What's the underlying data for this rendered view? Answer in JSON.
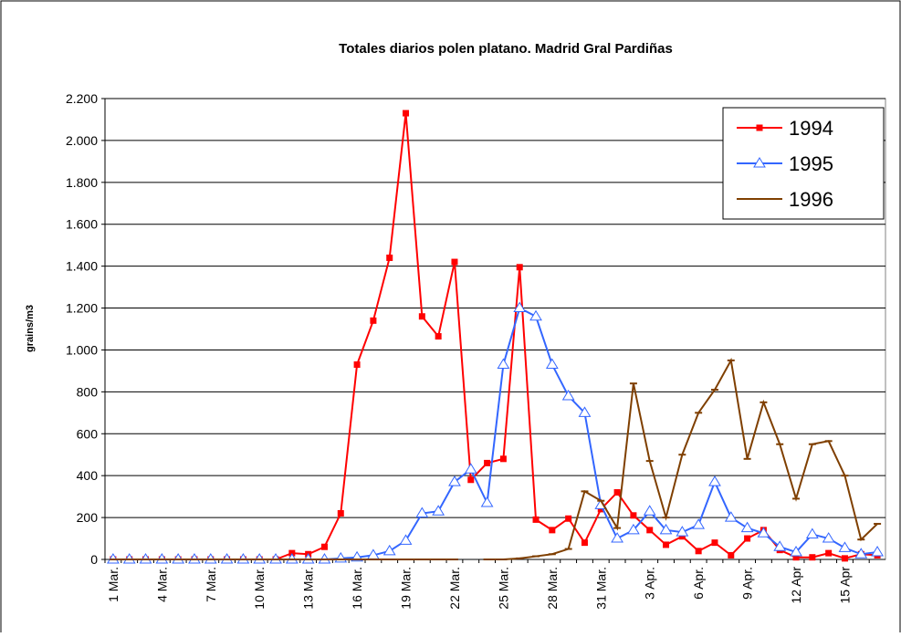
{
  "chart_data": {
    "type": "line",
    "title": "Totales diarios polen platano. Madrid Gral Pardiñas",
    "y_label": "grains/m3",
    "categories": [
      "1 Mar.",
      null,
      null,
      "4 Mar.",
      null,
      null,
      "7 Mar.",
      null,
      null,
      "10 Mar.",
      null,
      null,
      "13 Mar.",
      null,
      null,
      "16 Mar.",
      null,
      null,
      "19 Mar.",
      null,
      null,
      "22 Mar.",
      null,
      null,
      "25 Mar.",
      null,
      null,
      "28 Mar.",
      null,
      null,
      "31 Mar.",
      null,
      null,
      "3  Apr.",
      null,
      null,
      "6  Apr.",
      null,
      null,
      "9  Apr.",
      null,
      null,
      "12 Apr",
      null,
      null,
      "15 Apr",
      null,
      null
    ],
    "series": [
      {
        "name": "1994",
        "color": "#ff0000",
        "marker": "square",
        "values": [
          0,
          0,
          0,
          0,
          0,
          0,
          0,
          0,
          0,
          0,
          0,
          30,
          25,
          60,
          220,
          930,
          1140,
          1440,
          2130,
          1160,
          1065,
          1420,
          380,
          460,
          480,
          1395,
          190,
          140,
          195,
          80,
          240,
          320,
          210,
          140,
          70,
          110,
          40,
          80,
          20,
          100,
          140,
          45,
          10,
          10,
          30,
          5,
          25,
          20
        ]
      },
      {
        "name": "1995",
        "color": "#3366ff",
        "marker": "triangle",
        "values": [
          0,
          0,
          0,
          0,
          0,
          0,
          0,
          0,
          0,
          0,
          0,
          0,
          0,
          0,
          5,
          10,
          20,
          40,
          90,
          220,
          230,
          370,
          430,
          270,
          930,
          1200,
          1160,
          930,
          780,
          700,
          260,
          100,
          140,
          230,
          140,
          130,
          165,
          370,
          200,
          150,
          125,
          60,
          35,
          120,
          100,
          55,
          25,
          35
        ]
      },
      {
        "name": "1996",
        "color": "#7f3f00",
        "marker": "dash",
        "values": [
          0,
          0,
          0,
          0,
          0,
          0,
          0,
          0,
          0,
          0,
          0,
          0,
          0,
          0,
          0,
          0,
          0,
          0,
          0,
          0,
          0,
          0,
          null,
          0,
          0,
          5,
          15,
          25,
          50,
          325,
          280,
          150,
          840,
          470,
          200,
          500,
          700,
          810,
          950,
          480,
          750,
          550,
          290,
          550,
          565,
          400,
          95,
          170
        ]
      }
    ],
    "ylim": [
      0,
      2200
    ],
    "yticks": [
      0,
      200,
      400,
      600,
      800,
      {
        "value": 1000,
        "label": "1.000"
      },
      {
        "value": 1200,
        "label": "1.200"
      },
      {
        "value": 1400,
        "label": "1.400"
      },
      {
        "value": 1600,
        "label": "1.600"
      },
      {
        "value": 1800,
        "label": "1.800"
      },
      {
        "value": 2000,
        "label": "2.000"
      },
      {
        "value": 2200,
        "label": "2.200"
      }
    ],
    "grid": true,
    "legend": "upper-right"
  }
}
